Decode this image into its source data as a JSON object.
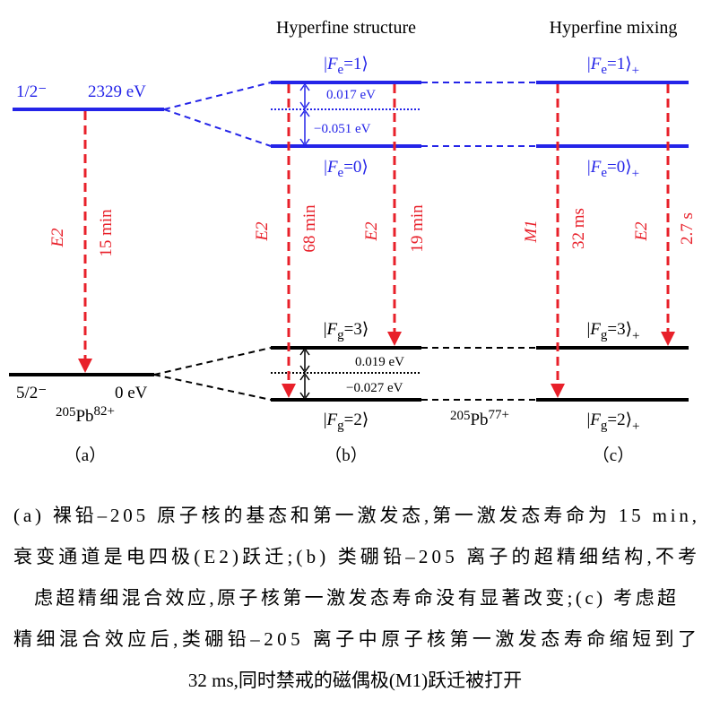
{
  "panel_a": {
    "excited": {
      "spin": "1/2⁻",
      "energy": "2329 eV"
    },
    "ground": {
      "spin": "5/2⁻",
      "energy": "0 eV"
    },
    "transition": {
      "type": "E2",
      "lifetime": "15 min"
    },
    "ion": {
      "mass": "205",
      "element": "Pb",
      "charge": "82+"
    },
    "label": "（a）"
  },
  "panel_b": {
    "title": "Hyperfine structure",
    "levels": [
      {
        "bra": "|",
        "symbol": "F",
        "sub": "e",
        "value": "=1⟩"
      },
      {
        "bra": "|",
        "symbol": "F",
        "sub": "e",
        "value": "=0⟩"
      },
      {
        "bra": "|",
        "symbol": "F",
        "sub": "g",
        "value": "=3⟩"
      },
      {
        "bra": "|",
        "symbol": "F",
        "sub": "g",
        "value": "=2⟩"
      }
    ],
    "splittings": [
      "0.017 eV",
      "−0.051 eV",
      "0.019 eV",
      "−0.027 eV"
    ],
    "transitions": [
      {
        "type": "E2",
        "lifetime": "68 min"
      },
      {
        "type": "E2",
        "lifetime": "19 min"
      }
    ],
    "ion": {
      "mass": "205",
      "element": "Pb",
      "charge": "77+"
    },
    "label": "（b）"
  },
  "panel_c": {
    "title": "Hyperfine mixing",
    "levels": [
      {
        "bra": "|",
        "symbol": "F",
        "sub": "e",
        "value": "=1⟩",
        "suffix": "+"
      },
      {
        "bra": "|",
        "symbol": "F",
        "sub": "e",
        "value": "=0⟩",
        "suffix": "+"
      },
      {
        "bra": "|",
        "symbol": "F",
        "sub": "g",
        "value": "=3⟩",
        "suffix": "+"
      },
      {
        "bra": "|",
        "symbol": "F",
        "sub": "g",
        "value": "=2⟩",
        "suffix": "+"
      }
    ],
    "transitions": [
      {
        "type": "M1",
        "lifetime": "32 ms"
      },
      {
        "type": "E2",
        "lifetime": "2.7 s"
      }
    ],
    "label": "（c）"
  },
  "caption": [
    "(a) 裸铅–205 原子核的基态和第一激发态,第一激发态寿命为 15 min,",
    "衰变通道是电四极(E2)跃迁;(b) 类硼铅–205 离子的超精细结构,不考",
    "虑超精细混合效应,原子核第一激发态寿命没有显著改变;(c) 考虑超",
    "精细混合效应后,类硼铅–205 离子中原子核第一激发态寿命缩短到了",
    "32 ms,同时禁戒的磁偶极(M1)跃迁被打开"
  ]
}
